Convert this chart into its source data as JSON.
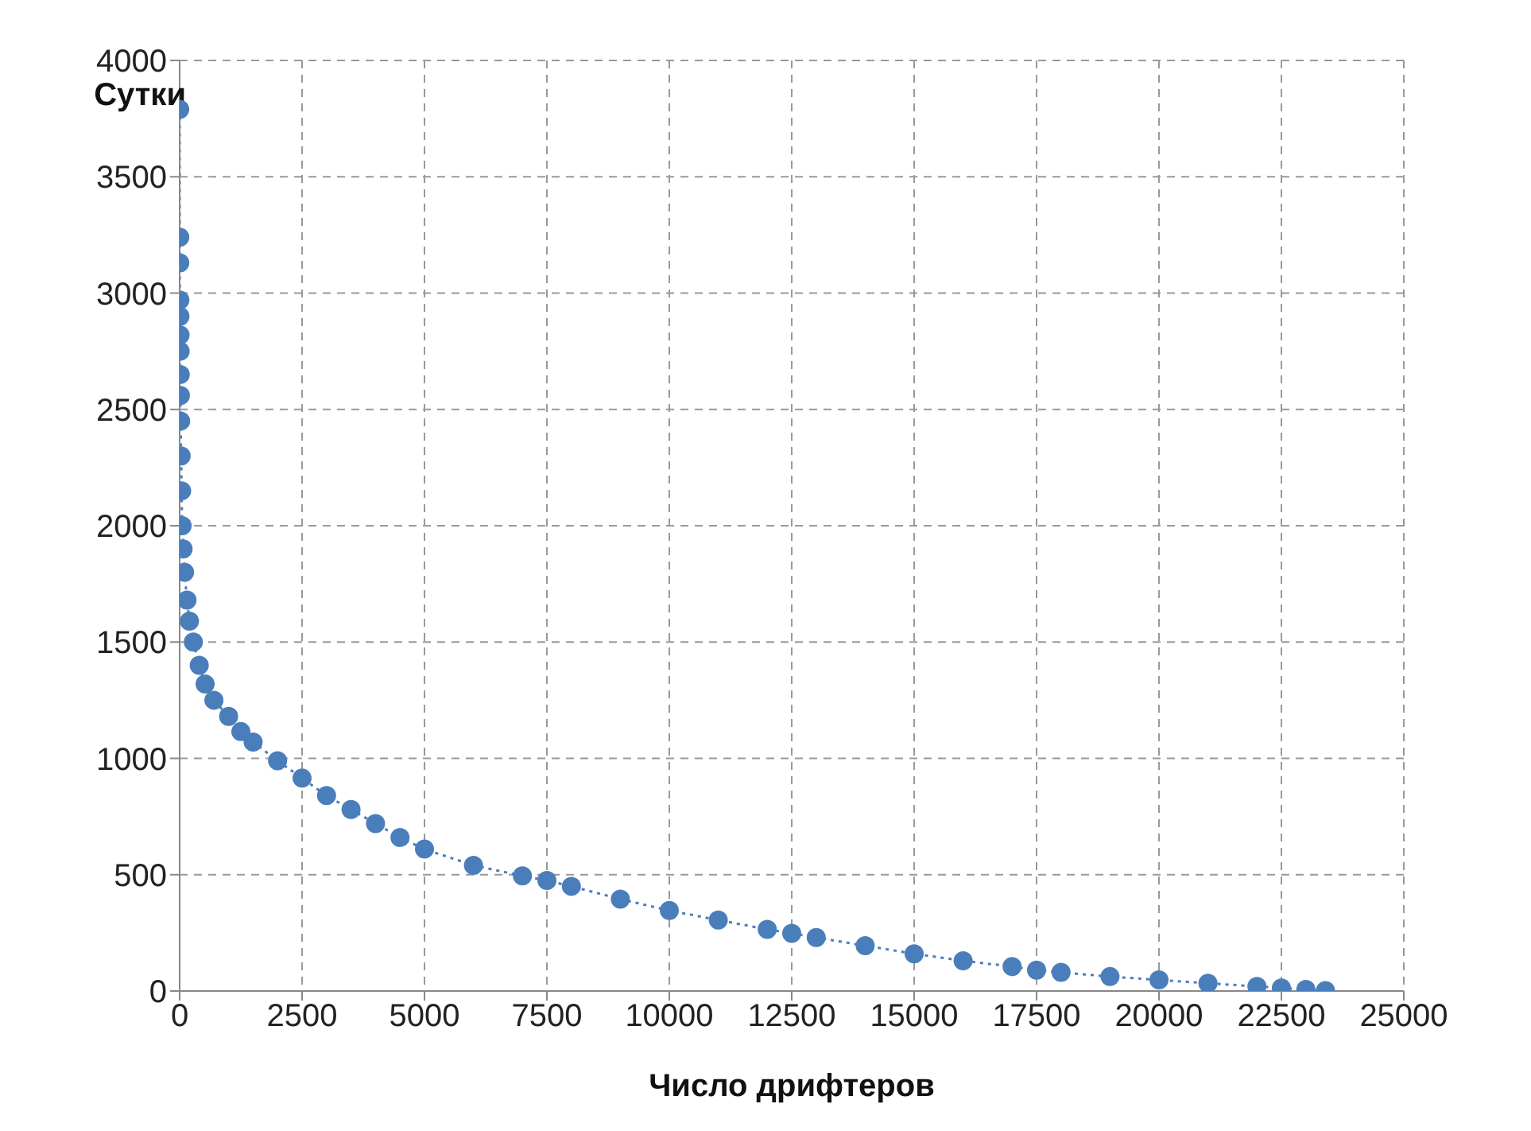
{
  "chart_data": {
    "type": "line",
    "xlabel": "Число дрифтеров",
    "ylabel": "Сутки",
    "x": [
      1,
      2,
      3,
      4,
      6,
      8,
      10,
      12,
      15,
      20,
      30,
      40,
      50,
      70,
      100,
      150,
      200,
      280,
      400,
      520,
      700,
      1000,
      1250,
      1500,
      2000,
      2500,
      3000,
      3500,
      4000,
      4500,
      5000,
      6000,
      7000,
      7500,
      8000,
      9000,
      10000,
      11000,
      12000,
      12500,
      13000,
      14000,
      15000,
      16000,
      17000,
      17500,
      18000,
      19000,
      20000,
      21000,
      22000,
      22500,
      23000,
      23400
    ],
    "series": [
      {
        "color": "#4a7ebb",
        "values": [
          3790,
          3240,
          3130,
          2970,
          2900,
          2820,
          2750,
          2650,
          2560,
          2450,
          2300,
          2150,
          2000,
          1900,
          1800,
          1680,
          1590,
          1500,
          1400,
          1320,
          1250,
          1180,
          1115,
          1070,
          990,
          915,
          840,
          780,
          720,
          660,
          610,
          540,
          495,
          475,
          450,
          395,
          346,
          305,
          265,
          248,
          230,
          195,
          160,
          130,
          105,
          90,
          80,
          62,
          48,
          33,
          20,
          13,
          7,
          2
        ]
      }
    ],
    "xlim": [
      0,
      25000
    ],
    "xticks": [
      0,
      2500,
      5000,
      7500,
      10000,
      12500,
      15000,
      17500,
      20000,
      22500,
      25000
    ],
    "ylim": [
      0,
      4000
    ],
    "yticks": [
      0,
      500,
      1000,
      1500,
      2000,
      2500,
      3000,
      3500,
      4000
    ],
    "grid": true,
    "legend": false,
    "marker": "circle",
    "line_style": "dotted"
  }
}
